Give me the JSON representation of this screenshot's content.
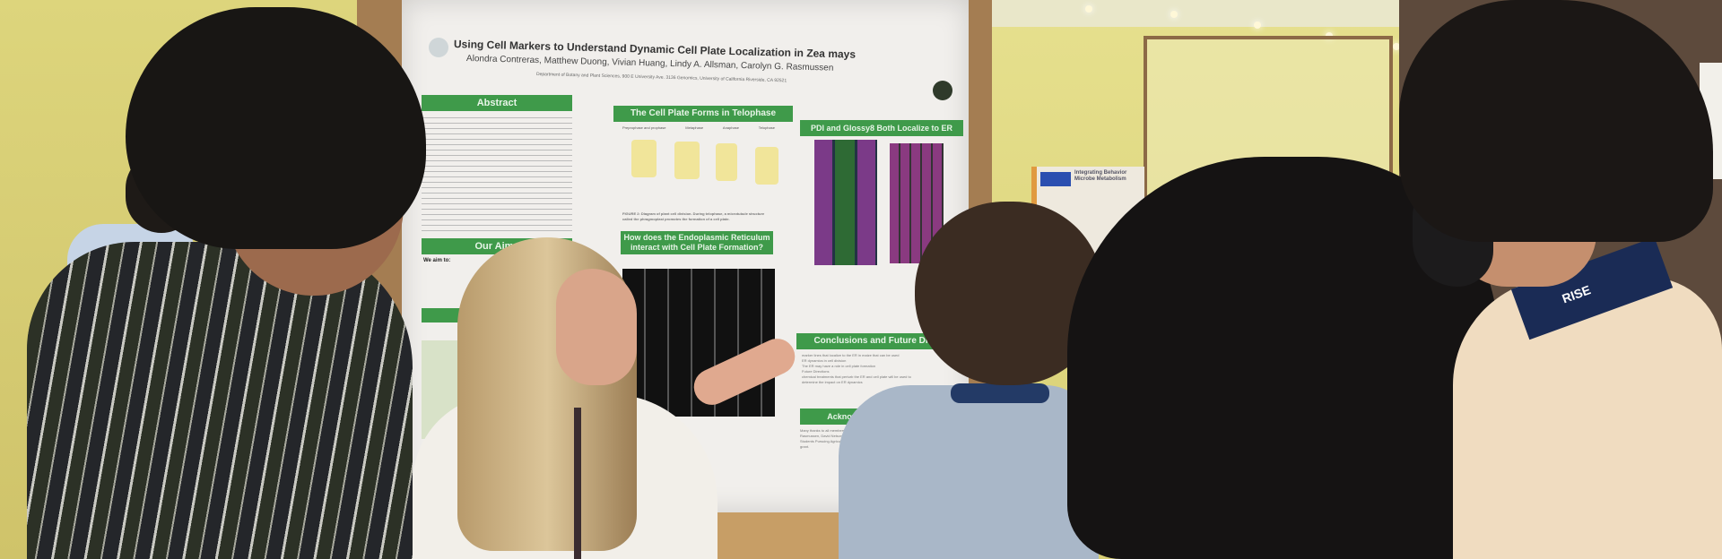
{
  "scene": "poster-session",
  "poster": {
    "title": "Using Cell Markers to Understand Dynamic Cell Plate Localization in Zea mays",
    "authors": "Alondra Contreras, Matthew Duong, Vivian Huang, Lindy A. Allsman, Carolyn G. Rasmussen",
    "department": "Department of Botany and Plant Sciences, 900 E University Ave. 3136 Genomics, University of California Riverside, CA 92521",
    "sections": {
      "abstract": "Abstract",
      "aims": "Our Aims",
      "aims_intro": "We aim to:",
      "cell_plate": "The Cell Plate Forms in Telophase",
      "pdi": "PDI and Glossy8 Both Localize to ER",
      "er_question": "How does the Endoplasmic Reticulum interact with Cell Plate Formation?",
      "conclusions": "Conclusions and Future Dir",
      "acknowledgments": "Acknowledgments"
    },
    "phases": [
      "Preprophase and prophase",
      "Metaphase",
      "Anaphase",
      "Telophase"
    ],
    "figure2_caption": "FIGURE 2: Diagram of plant cell division. During telophase, a microtubule structure called the phragmoplast promotes the formation of a cell plate.",
    "conclusions_text": [
      "marker lines that localize to the ER in maize that can be used",
      "ER dynamics in cell division",
      "The ER may have a role in cell plate formation",
      "Future Directions",
      "chemical treatments that perturb the ER and cell plate will be used to determine the impact on ER dynamics"
    ],
    "acknowledgments_text": "Many thanks to all members of the Rasmussen Laboratory, Carolyn Rasmussen, David Nelson, RISE Coordinators, Undergraduate Students Pursuing Agriculture-Related Careers (U-SPARC) 2017 grant."
  },
  "background_poster": {
    "title": "Integrating Behavior Microbe Metabolism"
  },
  "lanyard_text": "RISE",
  "colors": {
    "wall": "#d6cf78",
    "cork": "#a47d52",
    "poster": "#f1efec",
    "section_header": "#3f9a4a"
  }
}
